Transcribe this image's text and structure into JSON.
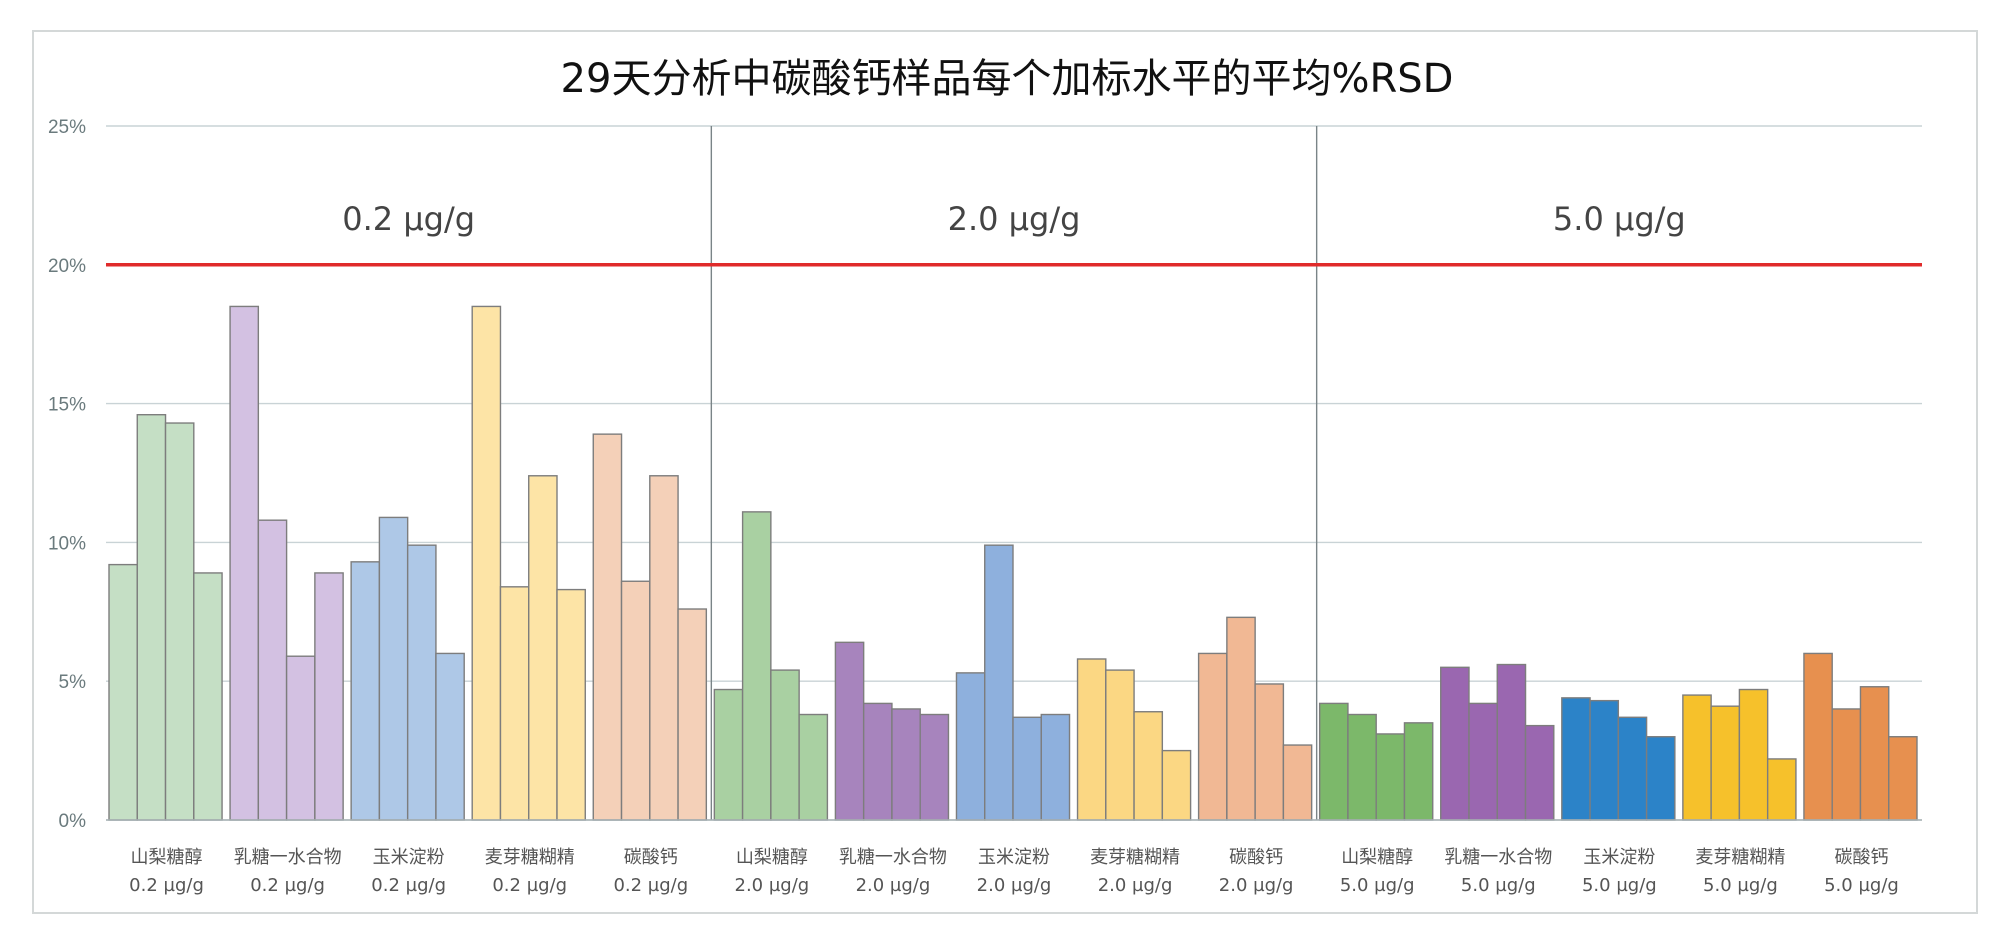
{
  "chart_data": {
    "type": "bar",
    "title": "29天分析中碳酸钙样品每个加标水平的平均%RSD",
    "ylim": [
      0,
      0.25
    ],
    "yticks": [
      "0%",
      "5%",
      "10%",
      "15%",
      "20%",
      "25%"
    ],
    "y_tick_values": [
      0,
      0.05,
      0.1,
      0.15,
      0.2,
      0.25
    ],
    "grid": true,
    "reference_line": {
      "value": 0.2,
      "color": "#e02b2b"
    },
    "groups": [
      {
        "label": "0.2 µg/g"
      },
      {
        "label": "2.0 µg/g"
      },
      {
        "label": "5.0 µg/g"
      }
    ],
    "categories": [
      {
        "name": "山梨糖醇",
        "level": "0.2 µg/g",
        "color": "#c5dfc5",
        "values": [
          0.092,
          0.146,
          0.143,
          0.089
        ]
      },
      {
        "name": "乳糖一水合物",
        "level": "0.2 µg/g",
        "color": "#d3c1e2",
        "values": [
          0.185,
          0.108,
          0.059,
          0.089
        ]
      },
      {
        "name": "玉米淀粉",
        "level": "0.2 µg/g",
        "color": "#aec8e7",
        "values": [
          0.093,
          0.109,
          0.099,
          0.06
        ]
      },
      {
        "name": "麦芽糖糊精",
        "level": "0.2 µg/g",
        "color": "#fde4a6",
        "values": [
          0.185,
          0.084,
          0.124,
          0.083
        ]
      },
      {
        "name": "碳酸钙",
        "level": "0.2 µg/g",
        "color": "#f4d0b8",
        "values": [
          0.139,
          0.086,
          0.124,
          0.076
        ]
      },
      {
        "name": "山梨糖醇",
        "level": "2.0 µg/g",
        "color": "#a9d0a2",
        "values": [
          0.047,
          0.111,
          0.054,
          0.038
        ]
      },
      {
        "name": "乳糖一水合物",
        "level": "2.0 µg/g",
        "color": "#a784bd",
        "values": [
          0.064,
          0.042,
          0.04,
          0.038
        ]
      },
      {
        "name": "玉米淀粉",
        "level": "2.0 µg/g",
        "color": "#8eb0dd",
        "values": [
          0.053,
          0.099,
          0.037,
          0.038
        ]
      },
      {
        "name": "麦芽糖糊精",
        "level": "2.0 µg/g",
        "color": "#fbd783",
        "values": [
          0.058,
          0.054,
          0.039,
          0.025
        ]
      },
      {
        "name": "碳酸钙",
        "level": "2.0 µg/g",
        "color": "#f1b894",
        "values": [
          0.06,
          0.073,
          0.049,
          0.027
        ]
      },
      {
        "name": "山梨糖醇",
        "level": "5.0 µg/g",
        "color": "#7cb86a",
        "values": [
          0.042,
          0.038,
          0.031,
          0.035
        ]
      },
      {
        "name": "乳糖一水合物",
        "level": "5.0 µg/g",
        "color": "#9a67b0",
        "values": [
          0.055,
          0.042,
          0.056,
          0.034
        ]
      },
      {
        "name": "玉米淀粉",
        "level": "5.0 µg/g",
        "color": "#2c83c8",
        "values": [
          0.044,
          0.043,
          0.037,
          0.03
        ]
      },
      {
        "name": "麦芽糖糊精",
        "level": "5.0 µg/g",
        "color": "#f6c12b",
        "values": [
          0.045,
          0.041,
          0.047,
          0.022
        ]
      },
      {
        "name": "碳酸钙",
        "level": "5.0 µg/g",
        "color": "#e7904f",
        "values": [
          0.06,
          0.04,
          0.048,
          0.03
        ]
      }
    ]
  }
}
